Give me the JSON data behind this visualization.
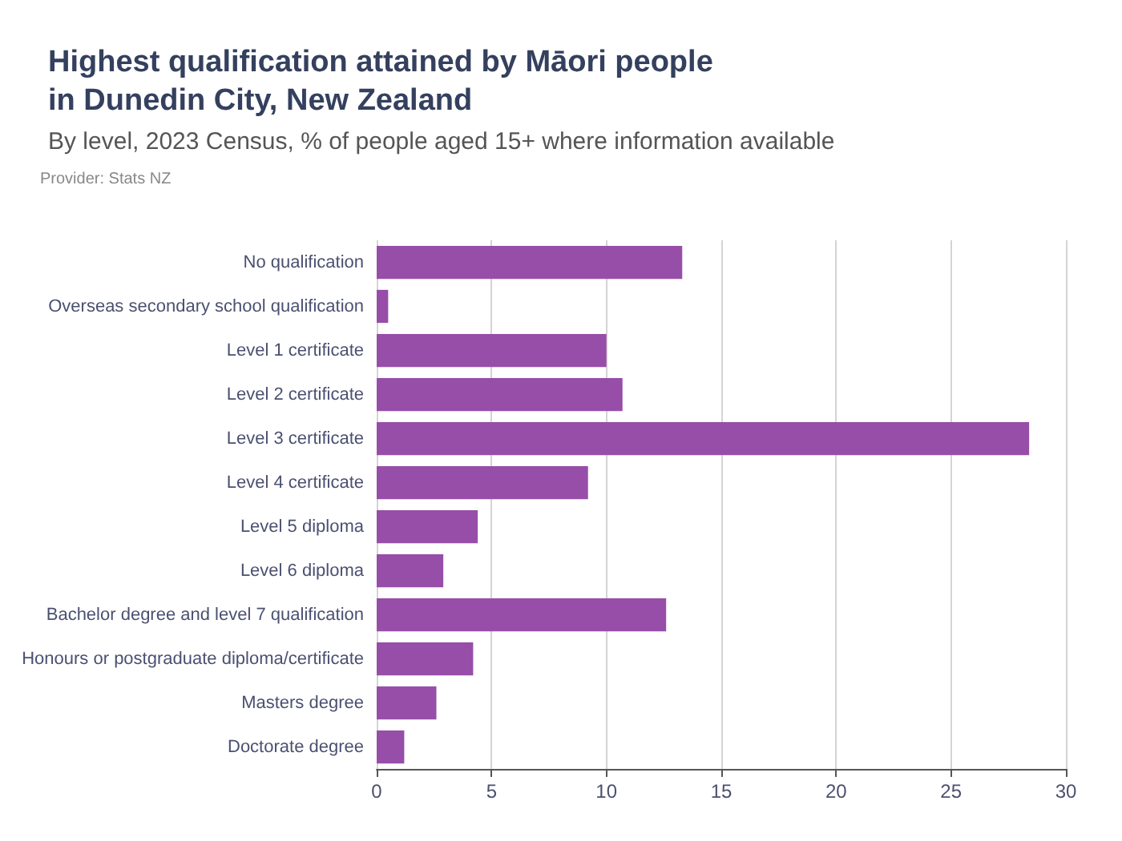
{
  "chart_data": {
    "type": "bar",
    "orientation": "horizontal",
    "title": "Highest qualification attained by Māori people\nin Dunedin City, New Zealand",
    "subtitle": "By level, 2023 Census, % of people aged 15+ where information available",
    "annotations": [
      "Provider: Stats NZ"
    ],
    "categories": [
      "No qualification",
      "Overseas secondary school qualification",
      "Level 1 certificate",
      "Level 2 certificate",
      "Level 3 certificate",
      "Level 4 certificate",
      "Level 5 diploma",
      "Level 6 diploma",
      "Bachelor degree and level 7 qualification",
      "Honours or postgraduate diploma/certificate",
      "Masters degree",
      "Doctorate degree"
    ],
    "values": [
      13.3,
      0.5,
      10.0,
      10.7,
      28.4,
      9.2,
      4.4,
      2.9,
      12.6,
      4.2,
      2.6,
      1.2
    ],
    "color": "#974ea8",
    "xlim": [
      0,
      30
    ],
    "xticks": [
      0,
      5,
      10,
      15,
      20,
      25,
      30
    ],
    "grid": "x"
  }
}
